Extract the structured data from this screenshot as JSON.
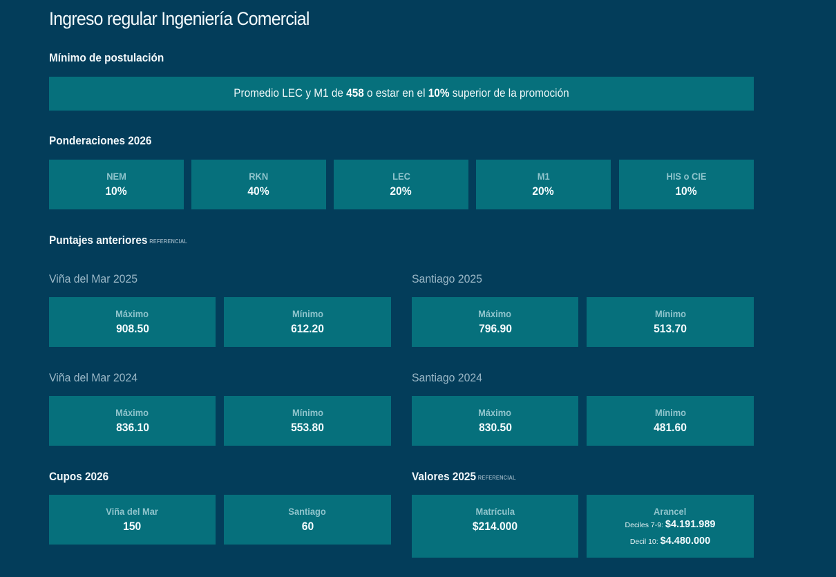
{
  "page_title": "Ingreso regular Ingeniería Comercial",
  "minimo": {
    "heading": "Mínimo de postulación",
    "text_1": "Promedio LEC y M1 de ",
    "score": "458",
    "text_2": " o estar en el ",
    "percent": "10%",
    "text_3": " superior de la promoción"
  },
  "ponderaciones": {
    "heading": "Ponderaciones 2026",
    "items": [
      {
        "label": "NEM",
        "value": "10%"
      },
      {
        "label": "RKN",
        "value": "40%"
      },
      {
        "label": "LEC",
        "value": "20%"
      },
      {
        "label": "M1",
        "value": "20%"
      },
      {
        "label": "HIS o CIE",
        "value": "10%"
      }
    ]
  },
  "puntajes": {
    "heading": "Puntajes anteriores",
    "tag": "REFERENCIAL",
    "groups": [
      {
        "title": "Viña del Mar 2025",
        "max_label": "Máximo",
        "max": "908.50",
        "min_label": "Mínimo",
        "min": "612.20"
      },
      {
        "title": "Santiago 2025",
        "max_label": "Máximo",
        "max": "796.90",
        "min_label": "Mínimo",
        "min": "513.70"
      },
      {
        "title": "Viña del Mar 2024",
        "max_label": "Máximo",
        "max": "836.10",
        "min_label": "Mínimo",
        "min": "553.80"
      },
      {
        "title": "Santiago 2024",
        "max_label": "Máximo",
        "max": "830.50",
        "min_label": "Mínimo",
        "min": "481.60"
      }
    ]
  },
  "cupos": {
    "heading": "Cupos 2026",
    "items": [
      {
        "label": "Viña del Mar",
        "value": "150"
      },
      {
        "label": "Santiago",
        "value": "60"
      }
    ]
  },
  "valores": {
    "heading": "Valores 2025",
    "tag": "REFERENCIAL",
    "matricula_label": "Matrícula",
    "matricula_value": "$214.000",
    "arancel_label": "Arancel",
    "deciles_7_9_label": "Deciles 7-9: ",
    "deciles_7_9_value": "$4.191.989",
    "decil_10_label": "Decil 10: ",
    "decil_10_value": "$4.480.000"
  },
  "colors": {
    "background": "#033d5a",
    "card": "#06707c",
    "card_label": "#8fc4cc",
    "subheading": "#9bb8c7"
  }
}
